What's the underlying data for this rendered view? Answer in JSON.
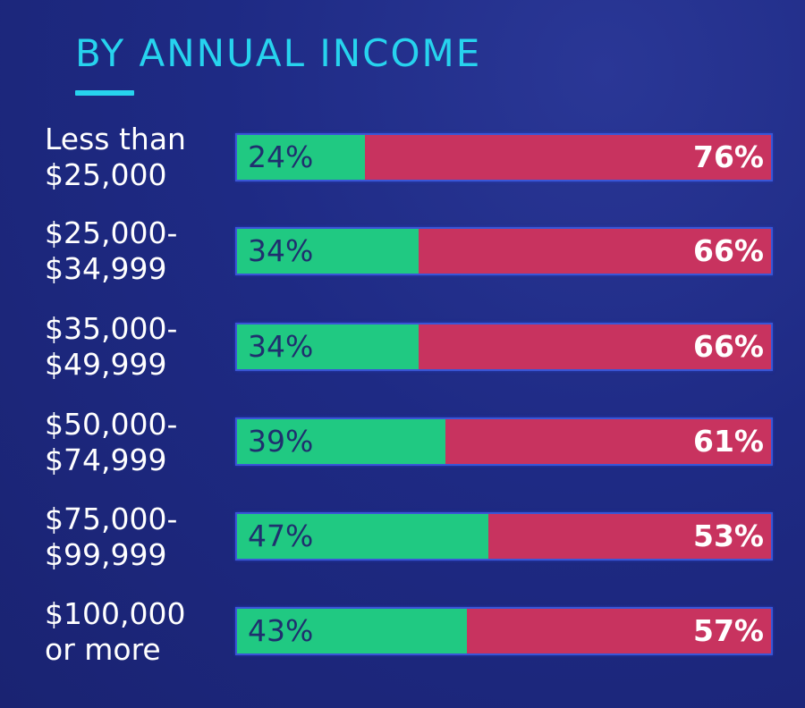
{
  "chart_data": {
    "type": "bar",
    "stacked": true,
    "orientation": "horizontal",
    "title": "BY ANNUAL INCOME",
    "categories": [
      "Less than\n$25,000",
      "$25,000-\n$34,999",
      "$35,000-\n$49,999",
      "$50,000-\n$74,999",
      "$75,000-\n$99,999",
      "$100,000\nor more"
    ],
    "series": [
      {
        "values": [
          24,
          34,
          34,
          39,
          47,
          43
        ],
        "labels": [
          "24%",
          "34%",
          "34%",
          "39%",
          "47%",
          "43%"
        ],
        "color": "#20c982",
        "label_color": "#1f2f6e"
      },
      {
        "values": [
          76,
          66,
          66,
          61,
          53,
          57
        ],
        "labels": [
          "76%",
          "66%",
          "66%",
          "61%",
          "53%",
          "57%"
        ],
        "color": "#c8335f",
        "label_color": "#ffffff"
      }
    ],
    "xlim": [
      0,
      100
    ],
    "grid": false,
    "legend": "none"
  },
  "colors": {
    "title": "#27d3ee",
    "underline": "#27d3ee",
    "label": "#ffffff"
  }
}
